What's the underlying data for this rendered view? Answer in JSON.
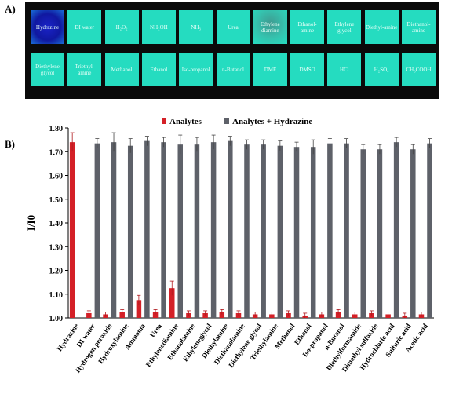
{
  "panel_a": {
    "label": "A)",
    "row1": [
      "Hydrazine",
      "DI water",
      "H₂O₂",
      "NH₂OH",
      "NH₃",
      "Urea",
      "Ethylene diamine",
      "Ethanol-amine",
      "Ethylene glycol",
      "Diethyl-amine",
      "Diethanol-amine"
    ],
    "row2": [
      "Diethylene glycol",
      "Triethyl-amine",
      "Methanol",
      "Ethanol",
      "Iso-propanol",
      "n-Butanol",
      "DMF",
      "DMSO",
      "HCl",
      "H₂SO₄",
      "CH₃COOH"
    ],
    "colors": {
      "background": "#0a0a0a",
      "tile": "#25dcc0",
      "hydrazine_tile": "#1018a0"
    }
  },
  "panel_b": {
    "label": "B)"
  },
  "chart_data": {
    "type": "bar",
    "title": "",
    "xlabel": "",
    "ylabel": "I/I0",
    "ylim": [
      1.0,
      1.8
    ],
    "yticks": [
      "1.00",
      "1.10",
      "1.20",
      "1.30",
      "1.40",
      "1.50",
      "1.60",
      "1.70",
      "1.80"
    ],
    "grid": false,
    "legend_position": "top",
    "categories": [
      "Hydrazine",
      "DI water",
      "Hydrogen peroxide",
      "Hydroxylamine",
      "Ammonia",
      "Urea",
      "Ethylenediamine",
      "Ethanolamine",
      "Ethyleneglycol",
      "Diethylamine",
      "Diethanolamine",
      "Diethylene glycol",
      "Triethylamine",
      "Methanol",
      "Ethanol",
      "Iso-propanol",
      "n-Butanol",
      "Diethylformamide",
      "Dimethyl sulfoxide",
      "Hydrochloric acid",
      "Sulfuric acid",
      "Acetic acid"
    ],
    "series": [
      {
        "name": "Analytes",
        "color": "#d42027",
        "values": [
          1.74,
          1.02,
          1.015,
          1.025,
          1.075,
          1.025,
          1.125,
          1.02,
          1.02,
          1.025,
          1.02,
          1.015,
          1.015,
          1.02,
          1.01,
          1.015,
          1.025,
          1.015,
          1.02,
          1.015,
          1.01,
          1.015
        ],
        "errors": [
          0.04,
          0.01,
          0.01,
          0.01,
          0.02,
          0.01,
          0.03,
          0.01,
          0.01,
          0.01,
          0.01,
          0.01,
          0.01,
          0.01,
          0.01,
          0.01,
          0.01,
          0.01,
          0.01,
          0.01,
          0.01,
          0.01
        ]
      },
      {
        "name": "Analytes + Hydrazine",
        "color": "#5e6169",
        "values": [
          null,
          1.735,
          1.74,
          1.725,
          1.745,
          1.74,
          1.73,
          1.73,
          1.74,
          1.745,
          1.73,
          1.73,
          1.725,
          1.72,
          1.72,
          1.735,
          1.735,
          1.71,
          1.71,
          1.74,
          1.71,
          1.735
        ],
        "errors": [
          null,
          0.02,
          0.04,
          0.03,
          0.02,
          0.02,
          0.04,
          0.03,
          0.03,
          0.02,
          0.02,
          0.02,
          0.02,
          0.02,
          0.03,
          0.02,
          0.02,
          0.02,
          0.02,
          0.02,
          0.02,
          0.02
        ]
      }
    ]
  }
}
